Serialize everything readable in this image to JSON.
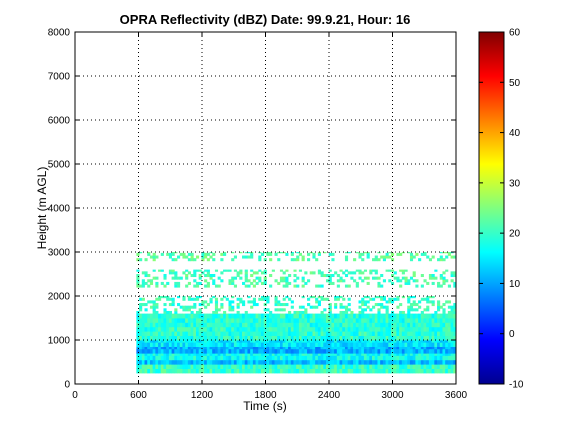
{
  "chart_data": {
    "type": "heatmap",
    "title": "OPRA Reflectivity (dBZ)  Date: 99.9.21, Hour: 16",
    "xlabel": "Time (s)",
    "ylabel": "Height (m AGL)",
    "xlim": [
      0,
      3600
    ],
    "ylim": [
      0,
      8000
    ],
    "xticks": [
      0,
      600,
      1200,
      1800,
      2400,
      3000,
      3600
    ],
    "yticks": [
      0,
      1000,
      2000,
      3000,
      4000,
      5000,
      6000,
      7000,
      8000
    ],
    "grid": true,
    "colormap": "jet",
    "colorbar": {
      "clim": [
        -10,
        60
      ],
      "ticks": [
        -10,
        0,
        10,
        20,
        30,
        40,
        50,
        60
      ],
      "position": "right"
    },
    "data_time_range": [
      580,
      3600
    ],
    "layers": [
      {
        "height_range": [
          250,
          450
        ],
        "dbz": 20
      },
      {
        "height_range": [
          450,
          550
        ],
        "dbz": 12
      },
      {
        "height_range": [
          550,
          700
        ],
        "dbz": 17
      },
      {
        "height_range": [
          700,
          850
        ],
        "dbz": 11
      },
      {
        "height_range": [
          850,
          1000
        ],
        "dbz": 15
      },
      {
        "height_range": [
          1000,
          1600
        ],
        "dbz": 19
      },
      {
        "height_range": [
          1600,
          2000
        ],
        "dbz": 20,
        "sparse": true
      },
      {
        "height_range": [
          2200,
          2600
        ],
        "dbz": 21,
        "sparse": true
      },
      {
        "height_range": [
          2800,
          3000
        ],
        "dbz": 22,
        "sparse": true
      }
    ]
  }
}
